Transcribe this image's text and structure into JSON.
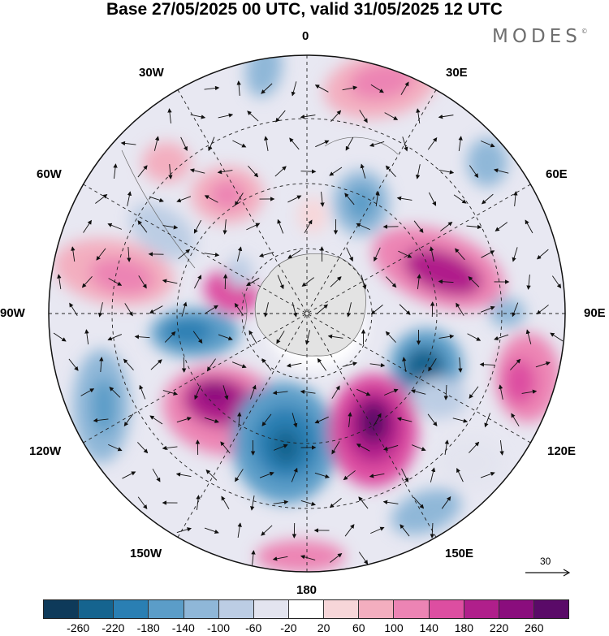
{
  "title": "Base 27/05/2025 00 UTC, valid 31/05/2025 12 UTC",
  "brand": "MODES",
  "brand_mark": "©",
  "longitude_labels": [
    "0",
    "30E",
    "60E",
    "90E",
    "120E",
    "150E",
    "180",
    "150W",
    "120W",
    "90W",
    "60W",
    "30W"
  ],
  "reference_vector": {
    "label": "30",
    "icon": "right-arrow-icon"
  },
  "colorbar": {
    "tick_labels": [
      "-260",
      "-220",
      "-180",
      "-140",
      "-100",
      "-60",
      "-20",
      "20",
      "60",
      "100",
      "140",
      "180",
      "220",
      "260"
    ],
    "colors": [
      "#0e3a5a",
      "#15648f",
      "#2a7fb3",
      "#5b9dc8",
      "#8fb7d8",
      "#bccde4",
      "#e3e4ef",
      "#ffffff",
      "#f7d6d9",
      "#f3aebf",
      "#ec84b4",
      "#dd4ea1",
      "#b01f8b",
      "#8a0d7d",
      "#5a0a68"
    ]
  }
}
